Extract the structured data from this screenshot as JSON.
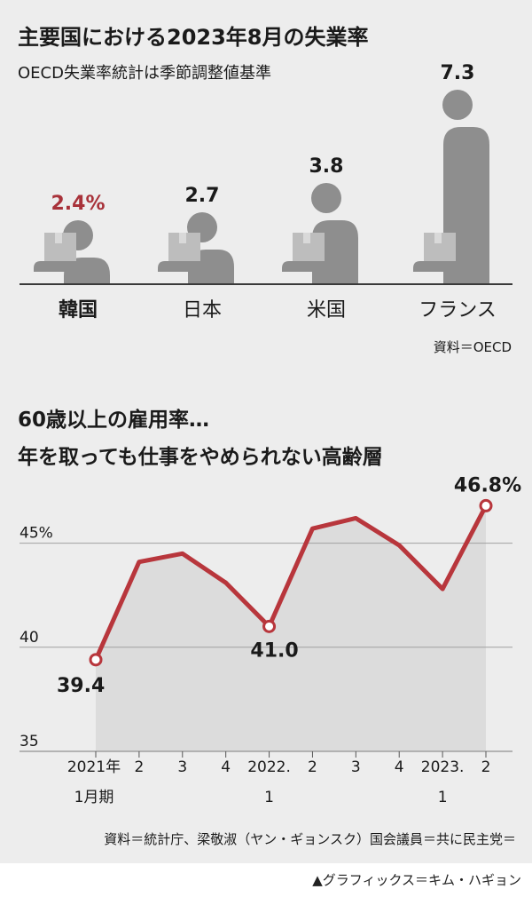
{
  "chart_data": [
    {
      "type": "bar",
      "title": "主要国における2023年8月の失業率",
      "subtitle": "OECD失業率統計は季節調整値基準",
      "categories": [
        "韓国",
        "日本",
        "米国",
        "フランス"
      ],
      "values": [
        2.4,
        2.7,
        3.8,
        7.3
      ],
      "value_labels": [
        "2.4%",
        "2.7",
        "3.8",
        "7.3"
      ],
      "highlight_category": "韓国",
      "source": "資料＝OECD",
      "colors": {
        "highlight": "#a8323a",
        "figure": "#8e8e8e",
        "box": "#bdbdbd",
        "text": "#1a1a1a"
      }
    },
    {
      "type": "area",
      "title_lines": [
        "60歳以上の雇用率…",
        "年を取っても仕事をやめられない高齢層"
      ],
      "x": [
        "2021年1月期",
        "2021年2月期",
        "2021年3月期",
        "2021年4月期",
        "2022年1月期",
        "2022年2月期",
        "2022年3月期",
        "2022年4月期",
        "2023年1月期",
        "2023年2月期"
      ],
      "x_tick_labels": [
        [
          "2021年",
          "1月期"
        ],
        [
          "2",
          ""
        ],
        [
          "3",
          ""
        ],
        [
          "4",
          ""
        ],
        [
          "2022.",
          "1"
        ],
        [
          "2",
          ""
        ],
        [
          "3",
          ""
        ],
        [
          "4",
          ""
        ],
        [
          "2023.",
          "1"
        ],
        [
          "2",
          ""
        ]
      ],
      "series": [
        {
          "values": [
            39.4,
            44.1,
            44.5,
            43.1,
            41.0,
            45.7,
            46.2,
            44.9,
            42.8,
            46.8
          ]
        }
      ],
      "ylim": [
        35,
        47.5
      ],
      "y_ticks": [
        35,
        40,
        45
      ],
      "y_tick_labels": [
        "35",
        "40",
        "45%"
      ],
      "annotations": [
        {
          "index": 0,
          "label": "39.4"
        },
        {
          "index": 4,
          "label": "41.0"
        },
        {
          "index": 9,
          "label": "46.8%"
        }
      ],
      "source": "資料＝統計庁、梁敬淑（ヤン・ギョンスク）国会議員＝共に民主党＝",
      "grid": true,
      "colors": {
        "line": "#b8363c",
        "area": "#dcdcdc",
        "grid": "#a0a0a0",
        "marker_fill": "#ffffff"
      }
    }
  ],
  "credit": "▲グラフィックス＝キム・ハギョン"
}
